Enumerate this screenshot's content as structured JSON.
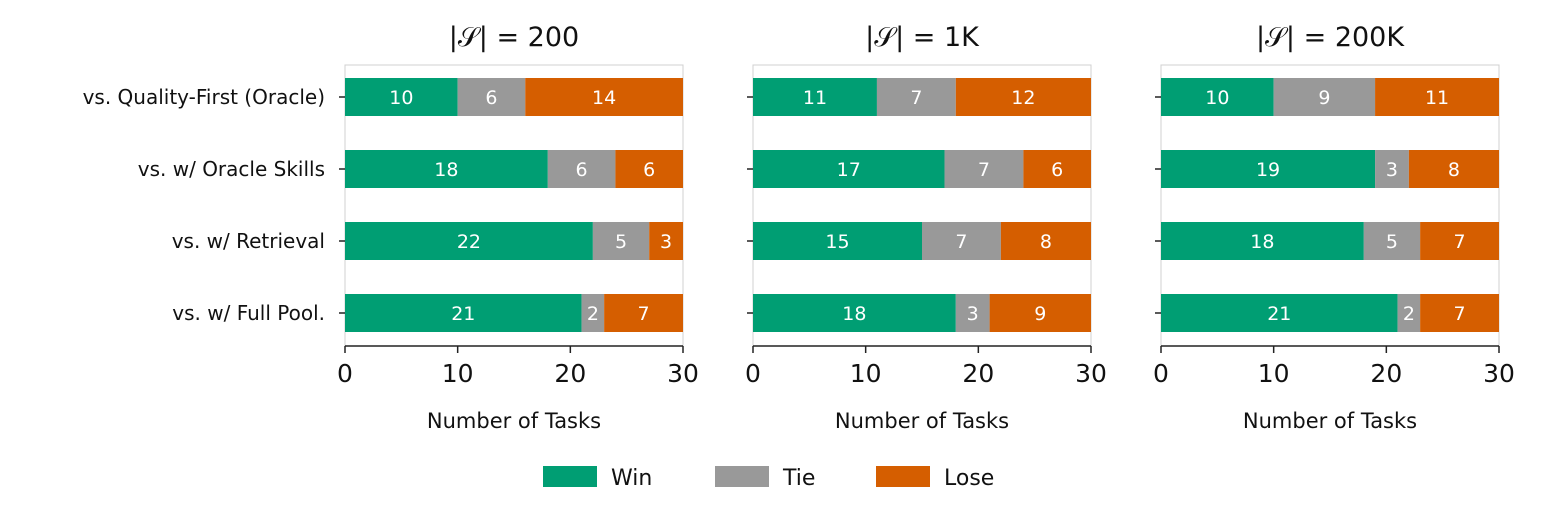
{
  "chart_data": [
    {
      "type": "bar",
      "orientation": "horizontal",
      "stacked": true,
      "title": "|𝒮| = 200",
      "xlabel": "Number of Tasks",
      "ylabel": "",
      "xlim": [
        0,
        30
      ],
      "xticks": [
        "0",
        "10",
        "20",
        "30"
      ],
      "categories": [
        "vs. Quality-First (Oracle)",
        "vs. w/ Oracle Skills",
        "vs. w/ Retrieval",
        "vs. w/ Full Pool."
      ],
      "series": [
        {
          "name": "Win",
          "values": [
            10,
            18,
            22,
            21
          ]
        },
        {
          "name": "Tie",
          "values": [
            6,
            6,
            5,
            2
          ]
        },
        {
          "name": "Lose",
          "values": [
            14,
            6,
            3,
            7
          ]
        }
      ],
      "grid": false
    },
    {
      "type": "bar",
      "orientation": "horizontal",
      "stacked": true,
      "title": "|𝒮| = 1K",
      "xlabel": "Number of Tasks",
      "ylabel": "",
      "xlim": [
        0,
        30
      ],
      "xticks": [
        "0",
        "10",
        "20",
        "30"
      ],
      "categories": [
        "vs. Quality-First (Oracle)",
        "vs. w/ Oracle Skills",
        "vs. w/ Retrieval",
        "vs. w/ Full Pool."
      ],
      "series": [
        {
          "name": "Win",
          "values": [
            11,
            17,
            15,
            18
          ]
        },
        {
          "name": "Tie",
          "values": [
            7,
            7,
            7,
            3
          ]
        },
        {
          "name": "Lose",
          "values": [
            12,
            6,
            8,
            9
          ]
        }
      ],
      "grid": false
    },
    {
      "type": "bar",
      "orientation": "horizontal",
      "stacked": true,
      "title": "|𝒮| = 200K",
      "xlabel": "Number of Tasks",
      "ylabel": "",
      "xlim": [
        0,
        30
      ],
      "xticks": [
        "0",
        "10",
        "20",
        "30"
      ],
      "categories": [
        "vs. Quality-First (Oracle)",
        "vs. w/ Oracle Skills",
        "vs. w/ Retrieval",
        "vs. w/ Full Pool."
      ],
      "series": [
        {
          "name": "Win",
          "values": [
            10,
            19,
            18,
            21
          ]
        },
        {
          "name": "Tie",
          "values": [
            9,
            3,
            5,
            2
          ]
        },
        {
          "name": "Lose",
          "values": [
            11,
            8,
            7,
            7
          ]
        }
      ],
      "grid": false
    }
  ],
  "legend": {
    "placement": "bottom-center",
    "items": [
      {
        "label": "Win",
        "color": "#009E73"
      },
      {
        "label": "Tie",
        "color": "#999999"
      },
      {
        "label": "Lose",
        "color": "#D55E00"
      }
    ]
  },
  "colors": {
    "win": "#009E73",
    "tie": "#999999",
    "lose": "#D55E00"
  }
}
